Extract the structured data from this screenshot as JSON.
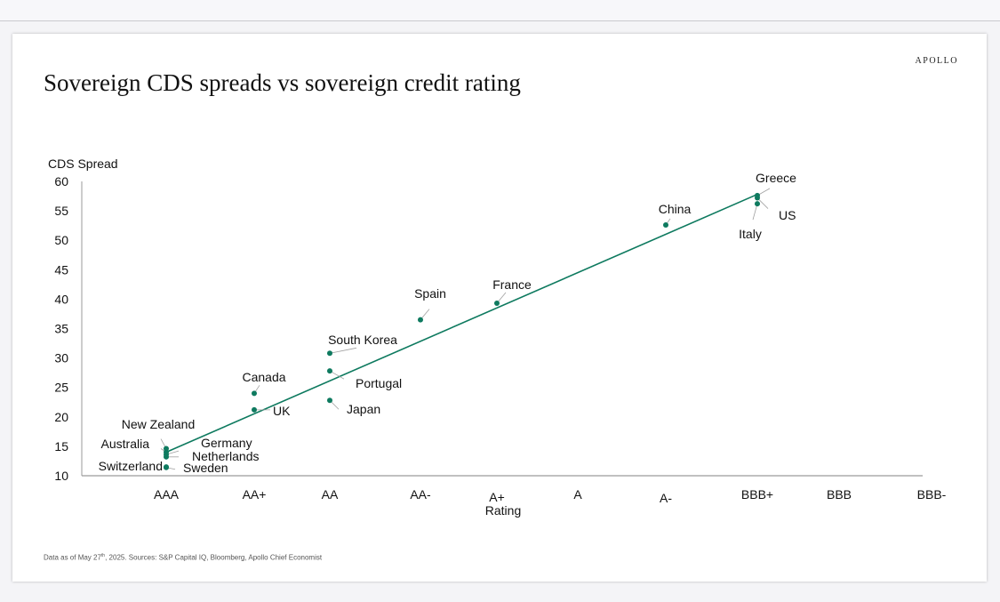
{
  "brand": "APOLLO",
  "title": "Sovereign CDS spreads vs sovereign credit rating",
  "footnote": {
    "pre": "Data as of May 27",
    "sup": "th",
    "post": ", 2025. Sources: S&P Capital IQ, Bloomberg, Apollo Chief Economist"
  },
  "colors": {
    "series": "#0e7a5f",
    "axis": "#9a9a9a",
    "text": "#111111"
  },
  "chart_data": {
    "type": "scatter",
    "title": "Sovereign CDS spreads vs sovereign credit rating",
    "xlabel": "Rating",
    "ylabel": "CDS Spread",
    "categories": [
      "AAA",
      "AA+",
      "AA",
      "AA-",
      "A+",
      "A",
      "A-",
      "BBB+",
      "BBB",
      "BBB-"
    ],
    "ylim": [
      10,
      60
    ],
    "yticks": [
      10,
      15,
      20,
      25,
      30,
      35,
      40,
      45,
      50,
      55,
      60
    ],
    "grid": false,
    "legend": "none",
    "points": [
      {
        "label": "New Zealand",
        "x": "AAA",
        "y": 14.6
      },
      {
        "label": "Australia",
        "x": "AAA",
        "y": 14.0
      },
      {
        "label": "Germany",
        "x": "AAA",
        "y": 13.6
      },
      {
        "label": "Netherlands",
        "x": "AAA",
        "y": 13.2
      },
      {
        "label": "Switzerland",
        "x": "AAA",
        "y": 11.5
      },
      {
        "label": "Sweden",
        "x": "AAA",
        "y": 11.4
      },
      {
        "label": "Canada",
        "x": "AA+",
        "y": 24.0
      },
      {
        "label": "UK",
        "x": "AA+",
        "y": 21.2
      },
      {
        "label": "South Korea",
        "x": "AA",
        "y": 30.8
      },
      {
        "label": "Portugal",
        "x": "AA",
        "y": 27.8
      },
      {
        "label": "Japan",
        "x": "AA",
        "y": 22.8
      },
      {
        "label": "Spain",
        "x": "AA-",
        "y": 36.5
      },
      {
        "label": "France",
        "x": "A+",
        "y": 39.3
      },
      {
        "label": "China",
        "x": "A-",
        "y": 52.6
      },
      {
        "label": "Greece",
        "x": "BBB+",
        "y": 57.6
      },
      {
        "label": "US",
        "x": "BBB+",
        "y": 57.2
      },
      {
        "label": "Italy",
        "x": "BBB+",
        "y": 56.2
      }
    ],
    "trendline": {
      "from": {
        "x": "AAA",
        "y": 14.0
      },
      "to": {
        "x": "BBB+",
        "y": 57.8
      }
    }
  }
}
